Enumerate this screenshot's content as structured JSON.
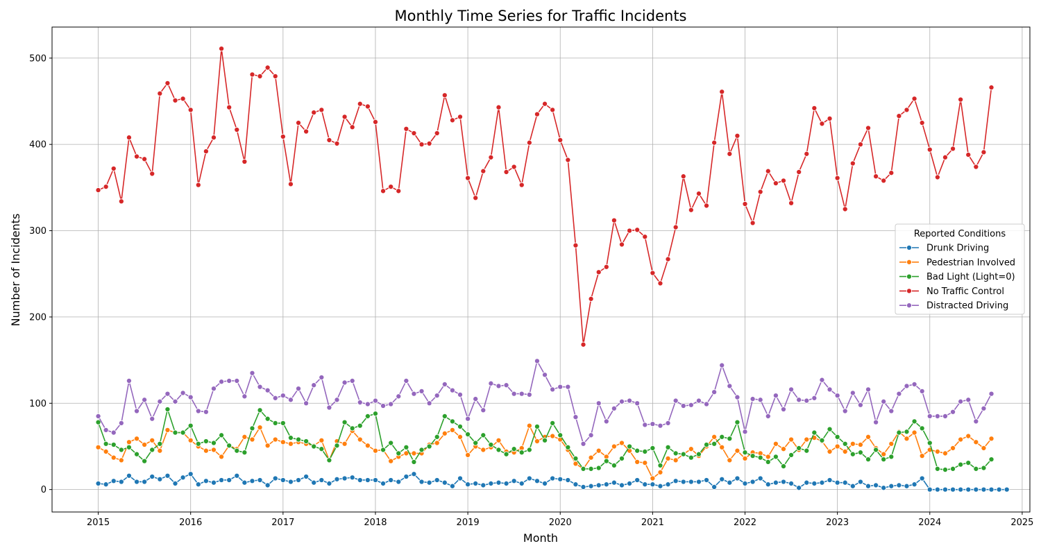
{
  "chart_data": {
    "type": "line",
    "title": "Monthly Time Series for Traffic Incidents",
    "xlabel": "Month",
    "ylabel": "Number of Incidents",
    "x_start": "2015-01",
    "x_ticks": [
      "2015",
      "2016",
      "2017",
      "2018",
      "2019",
      "2020",
      "2021",
      "2022",
      "2023",
      "2024",
      "2025"
    ],
    "y_ticks": [
      0,
      100,
      200,
      300,
      400,
      500
    ],
    "ylim": [
      -26,
      536
    ],
    "xlim": [
      "2014-07",
      "2025-02"
    ],
    "grid": true,
    "legend": {
      "title": "Reported Conditions",
      "placement": "center-right"
    },
    "series": [
      {
        "name": "Drunk Driving",
        "color": "#1f77b4",
        "values": [
          7,
          6,
          10,
          9,
          16,
          9,
          9,
          15,
          12,
          16,
          7,
          14,
          18,
          6,
          10,
          8,
          11,
          11,
          16,
          8,
          10,
          11,
          5,
          13,
          11,
          9,
          11,
          15,
          8,
          11,
          7,
          12,
          13,
          14,
          11,
          11,
          11,
          7,
          11,
          9,
          15,
          18,
          9,
          8,
          11,
          8,
          4,
          13,
          6,
          7,
          5,
          7,
          8,
          7,
          10,
          7,
          13,
          10,
          7,
          13,
          12,
          11,
          6,
          3,
          4,
          5,
          6,
          8,
          5,
          7,
          11,
          6,
          6,
          4,
          6,
          10,
          9,
          9,
          9,
          11,
          3,
          12,
          8,
          13,
          7,
          9,
          13,
          6,
          8,
          9,
          7,
          2,
          8,
          7,
          8,
          11,
          8,
          8,
          4,
          9,
          4,
          5,
          2,
          4,
          5,
          4,
          6,
          13,
          0,
          0,
          0,
          0,
          0,
          0,
          0,
          0,
          0,
          0,
          0
        ]
      },
      {
        "name": "Pedestrian Involved",
        "color": "#ff7f0e",
        "values": [
          49,
          44,
          37,
          34,
          55,
          59,
          52,
          57,
          45,
          69,
          66,
          66,
          57,
          50,
          45,
          46,
          38,
          51,
          47,
          61,
          58,
          72,
          51,
          58,
          55,
          53,
          55,
          53,
          51,
          57,
          34,
          56,
          53,
          68,
          58,
          51,
          45,
          46,
          33,
          38,
          42,
          42,
          42,
          52,
          54,
          65,
          69,
          61,
          40,
          50,
          46,
          49,
          57,
          44,
          43,
          48,
          74,
          56,
          61,
          62,
          58,
          46,
          30,
          24,
          37,
          45,
          38,
          50,
          54,
          45,
          32,
          31,
          13,
          20,
          36,
          34,
          41,
          47,
          39,
          50,
          61,
          49,
          34,
          45,
          36,
          43,
          42,
          38,
          53,
          47,
          58,
          46,
          58,
          60,
          56,
          44,
          50,
          44,
          53,
          52,
          61,
          48,
          41,
          53,
          67,
          59,
          66,
          39,
          46,
          44,
          42,
          48,
          58,
          62,
          55,
          48,
          59
        ]
      },
      {
        "name": "Bad Light (Light=0)",
        "color": "#2ca02c",
        "values": [
          78,
          53,
          52,
          46,
          49,
          41,
          33,
          46,
          53,
          93,
          66,
          66,
          74,
          53,
          56,
          54,
          63,
          51,
          45,
          43,
          71,
          92,
          82,
          77,
          77,
          60,
          58,
          56,
          50,
          47,
          34,
          51,
          78,
          71,
          74,
          85,
          88,
          46,
          54,
          42,
          49,
          32,
          46,
          50,
          61,
          85,
          79,
          73,
          64,
          54,
          63,
          52,
          46,
          41,
          47,
          43,
          46,
          73,
          57,
          77,
          63,
          49,
          36,
          24,
          24,
          25,
          33,
          28,
          36,
          50,
          45,
          44,
          48,
          28,
          49,
          42,
          41,
          37,
          41,
          52,
          53,
          61,
          59,
          78,
          43,
          39,
          37,
          32,
          38,
          27,
          40,
          48,
          45,
          66,
          57,
          70,
          61,
          53,
          41,
          43,
          35,
          46,
          35,
          38,
          66,
          67,
          79,
          71,
          54,
          24,
          23,
          24,
          29,
          31,
          24,
          25,
          35
        ]
      },
      {
        "name": "No Traffic Control",
        "color": "#d62728",
        "values": [
          347,
          351,
          372,
          334,
          408,
          386,
          383,
          366,
          459,
          471,
          451,
          453,
          440,
          353,
          392,
          408,
          511,
          443,
          417,
          380,
          481,
          479,
          489,
          479,
          409,
          354,
          425,
          415,
          437,
          440,
          405,
          401,
          432,
          420,
          447,
          444,
          426,
          346,
          351,
          346,
          418,
          413,
          400,
          401,
          413,
          457,
          428,
          432,
          361,
          338,
          369,
          385,
          443,
          368,
          374,
          353,
          402,
          435,
          447,
          440,
          405,
          382,
          283,
          168,
          221,
          252,
          258,
          312,
          284,
          300,
          301,
          293,
          251,
          239,
          267,
          304,
          363,
          324,
          343,
          329,
          402,
          461,
          389,
          410,
          331,
          309,
          345,
          369,
          355,
          358,
          332,
          368,
          389,
          442,
          424,
          430,
          361,
          325,
          378,
          400,
          419,
          363,
          358,
          367,
          433,
          440,
          453,
          425,
          394,
          362,
          385,
          395,
          452,
          388,
          374,
          391,
          466
        ]
      },
      {
        "name": "Distracted Driving",
        "color": "#9467bd",
        "values": [
          85,
          69,
          66,
          77,
          126,
          91,
          104,
          82,
          102,
          111,
          102,
          112,
          107,
          91,
          90,
          117,
          125,
          126,
          126,
          108,
          135,
          119,
          115,
          106,
          109,
          104,
          117,
          100,
          121,
          130,
          95,
          104,
          124,
          126,
          101,
          99,
          103,
          97,
          99,
          108,
          126,
          111,
          114,
          100,
          109,
          122,
          115,
          110,
          82,
          105,
          92,
          123,
          120,
          121,
          111,
          111,
          110,
          149,
          133,
          116,
          119,
          119,
          84,
          53,
          63,
          100,
          79,
          94,
          102,
          103,
          100,
          75,
          76,
          74,
          77,
          103,
          97,
          98,
          103,
          99,
          113,
          144,
          120,
          107,
          67,
          105,
          104,
          85,
          109,
          93,
          116,
          104,
          103,
          106,
          127,
          116,
          109,
          91,
          112,
          98,
          116,
          78,
          102,
          91,
          111,
          120,
          122,
          114,
          85,
          85,
          85,
          90,
          102,
          104,
          79,
          94,
          111
        ]
      }
    ]
  }
}
